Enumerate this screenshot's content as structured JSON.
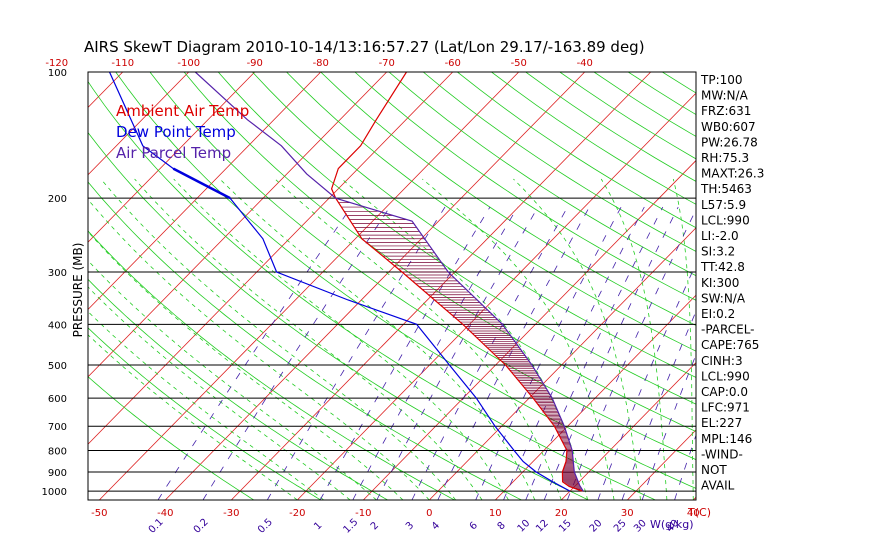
{
  "chart_data": {
    "type": "skew-t",
    "title": "AIRS SkewT Diagram 2010-10-14/13:16:57.27 (Lat/Lon 29.17/-163.89 deg)",
    "ylabel": "PRESSURE (MB)",
    "x_top_unit": "",
    "x_bottom_unit": "T(C)",
    "mixing_unit": "W(g/kg)",
    "pressure_levels": [
      100,
      200,
      300,
      400,
      500,
      600,
      700,
      800,
      900,
      1000
    ],
    "pressure_tick_labels": [
      "100",
      "200",
      "300",
      "400",
      "500",
      "600",
      "700",
      "800",
      "900",
      "1000"
    ],
    "top_temps": [
      -120,
      -110,
      -100,
      -90,
      -80,
      -70,
      -60,
      -50,
      -40
    ],
    "top_temp_labels": [
      "-120",
      "-110",
      "-100",
      "-90",
      "-80",
      "-70",
      "-60",
      "-50",
      "-40"
    ],
    "bottom_temps": [
      -50,
      -40,
      -30,
      -20,
      -10,
      0,
      10,
      20,
      30,
      40
    ],
    "bottom_temp_labels": [
      "-50",
      "-40",
      "-30",
      "-20",
      "-10",
      "0",
      "10",
      "20",
      "30",
      "40"
    ],
    "mixing_ratio_labels": [
      "0.1",
      "0.2",
      "0.5",
      "1",
      "1.5",
      "2",
      "3",
      "4",
      "6",
      "8",
      "10",
      "12",
      "15",
      "20",
      "25",
      "30",
      "40"
    ],
    "legend": [
      {
        "label": "Ambient Air Temp",
        "color": "#dd0000"
      },
      {
        "label": "Dew Point Temp",
        "color": "#0000dd"
      },
      {
        "label": "Air Parcel Temp",
        "color": "#5522aa"
      }
    ],
    "series": [
      {
        "name": "Ambient Air Temp",
        "color": "#dd0000",
        "points": [
          [
            1000,
            21.8
          ],
          [
            975,
            19.2
          ],
          [
            950,
            17.5
          ],
          [
            900,
            16.0
          ],
          [
            850,
            15.0
          ],
          [
            800,
            13.5
          ],
          [
            700,
            8.0
          ],
          [
            600,
            0.6
          ],
          [
            500,
            -8.5
          ],
          [
            400,
            -21.0
          ],
          [
            300,
            -38.0
          ],
          [
            250,
            -49.0
          ],
          [
            200,
            -59.0
          ],
          [
            190,
            -61.0
          ],
          [
            170,
            -63.0
          ],
          [
            150,
            -63.0
          ],
          [
            130,
            -64.5
          ],
          [
            100,
            -67.0
          ]
        ]
      },
      {
        "name": "Dew Point Temp",
        "color": "#0000dd",
        "points": [
          [
            1000,
            20.0
          ],
          [
            950,
            16.0
          ],
          [
            900,
            12.0
          ],
          [
            850,
            8.5
          ],
          [
            800,
            5.5
          ],
          [
            700,
            -1.0
          ],
          [
            600,
            -8.0
          ],
          [
            500,
            -17.0
          ],
          [
            400,
            -28.0
          ],
          [
            350,
            -42.0
          ],
          [
            300,
            -57.0
          ],
          [
            250,
            -64.0
          ],
          [
            200,
            -75.0
          ],
          [
            170,
            -88.0
          ],
          [
            150,
            -96.0
          ],
          [
            100,
            -112.0
          ]
        ]
      },
      {
        "name": "Air Parcel Temp",
        "color": "#5522aa",
        "points": [
          [
            1000,
            22.0
          ],
          [
            971,
            20.7
          ],
          [
            900,
            17.8
          ],
          [
            800,
            14.3
          ],
          [
            700,
            9.5
          ],
          [
            600,
            3.5
          ],
          [
            500,
            -4.5
          ],
          [
            400,
            -15.0
          ],
          [
            300,
            -31.0
          ],
          [
            227,
            -44.0
          ],
          [
            200,
            -59.0
          ],
          [
            175,
            -67.0
          ],
          [
            150,
            -75.0
          ],
          [
            130,
            -84.0
          ],
          [
            100,
            -99.0
          ]
        ]
      }
    ],
    "indices": [
      "TP:100",
      "MW:N/A",
      "FRZ:631",
      "WB0:607",
      "PW:26.78",
      "RH:75.3",
      "MAXT:26.3",
      "TH:5463",
      "L57:5.9",
      "LCL:990",
      "LI:-2.0",
      "SI:3.2",
      "TT:42.8",
      "KI:300",
      "SW:N/A",
      "EI:0.2",
      "-PARCEL-",
      "CAPE:765",
      "CINH:3",
      "LCL:990",
      "CAP:0.0",
      "LFC:971",
      "EL:227",
      "MPL:146",
      "-WIND-",
      "NOT",
      "AVAIL"
    ]
  }
}
